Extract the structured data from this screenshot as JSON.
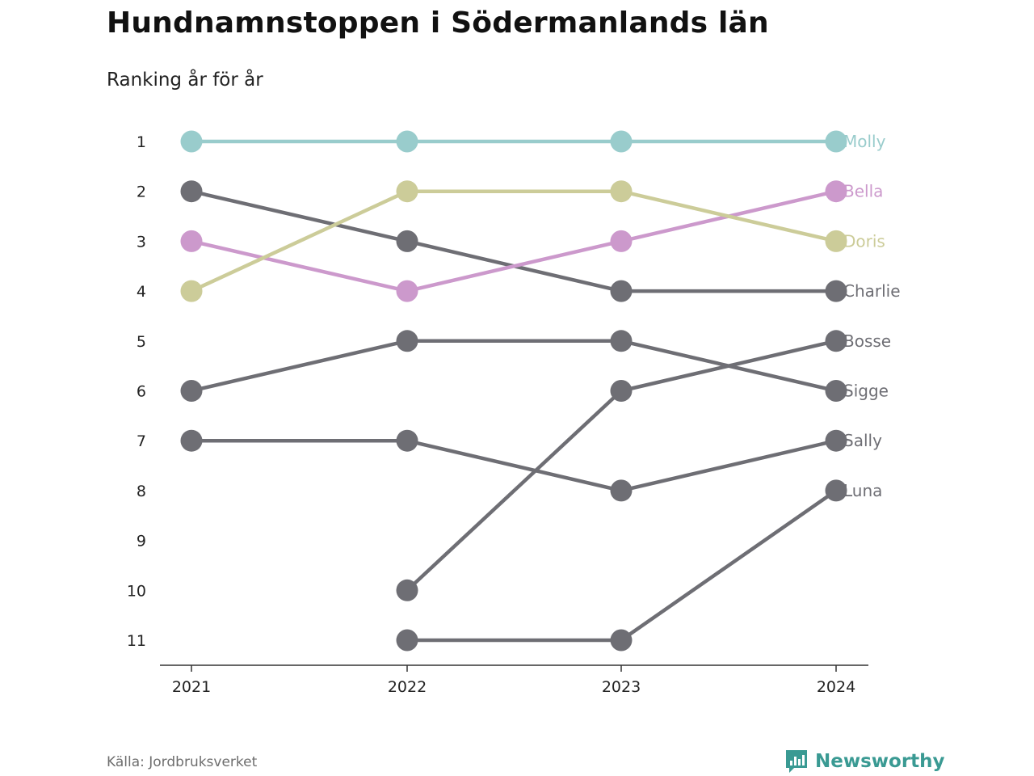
{
  "header": {
    "title": "Hundnamnstoppen i Södermanlands län",
    "subtitle": "Ranking år för år"
  },
  "footer": {
    "source": "Källa: Jordbruksverket",
    "brand": "Newsworthy",
    "brand_color": "#3a9a93"
  },
  "chart_data": {
    "type": "line",
    "chart_style": "bump",
    "x": [
      "2021",
      "2022",
      "2023",
      "2024"
    ],
    "y_ticks": [
      "1",
      "2",
      "3",
      "4",
      "5",
      "6",
      "7",
      "8",
      "9",
      "10",
      "11"
    ],
    "y_reversed": true,
    "ylim": [
      1,
      11
    ],
    "grid": false,
    "series": [
      {
        "name": "Molly",
        "values": [
          1,
          1,
          1,
          1
        ],
        "color": "#99cccc"
      },
      {
        "name": "Bella",
        "values": [
          3,
          4,
          3,
          2
        ],
        "color": "#cc99cc"
      },
      {
        "name": "Doris",
        "values": [
          4,
          2,
          2,
          3
        ],
        "color": "#cccc99"
      },
      {
        "name": "Charlie",
        "values": [
          2,
          3,
          4,
          4
        ],
        "color": "#6e6e74"
      },
      {
        "name": "Bosse",
        "values": [
          null,
          10,
          6,
          5
        ],
        "color": "#6e6e74"
      },
      {
        "name": "Sigge",
        "values": [
          6,
          5,
          5,
          6
        ],
        "color": "#6e6e74"
      },
      {
        "name": "Sally",
        "values": [
          7,
          7,
          8,
          7
        ],
        "color": "#6e6e74"
      },
      {
        "name": "Luna",
        "values": [
          null,
          11,
          11,
          8
        ],
        "color": "#6e6e74"
      }
    ]
  }
}
